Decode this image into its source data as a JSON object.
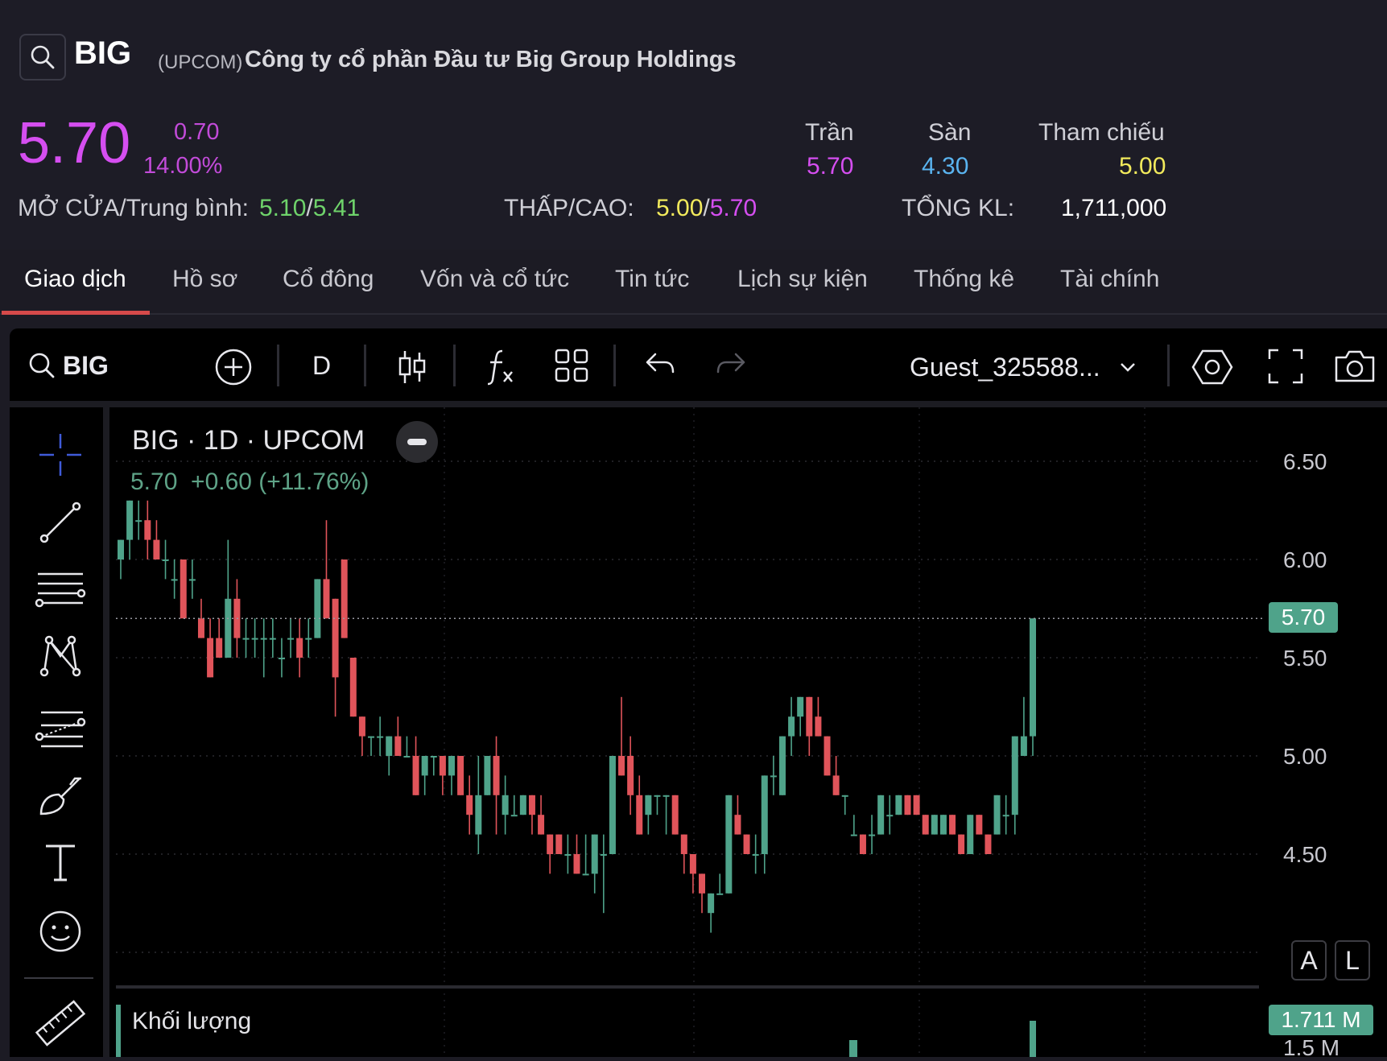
{
  "header": {
    "ticker": "BIG",
    "exchange": "(UPCOM)",
    "company_name": "Công ty cổ phần Đầu tư Big Group Holdings",
    "price": "5.70",
    "change": "0.70",
    "change_pct": "14.00%",
    "ceiling_label": "Trần",
    "ceiling_value": "5.70",
    "floor_label": "Sàn",
    "floor_value": "4.30",
    "ref_label": "Tham chiếu",
    "ref_value": "5.00",
    "open_avg_label": "MỞ CỬA/Trung bình:",
    "open_value": "5.10",
    "avg_value": "5.41",
    "low_high_label": "THẤP/CAO:",
    "low_value": "5.00",
    "high_value": "5.70",
    "volume_label": "TỔNG KL:",
    "volume_value": "1,711,000",
    "slash": "/"
  },
  "tabs": [
    "Giao dịch",
    "Hồ sơ",
    "Cổ đông",
    "Vốn và cổ tức",
    "Tin tức",
    "Lịch sự kiện",
    "Thống kê",
    "Tài chính"
  ],
  "toolbar": {
    "symbol": "BIG",
    "interval": "D",
    "user": "Guest_325588..."
  },
  "chart_legend": {
    "title": "BIG · 1D · UPCOM",
    "values": "5.70  +0.60 (+11.76%)"
  },
  "volume_pane": {
    "label": "Khối lượng",
    "last_label": "1.711 M",
    "axis_label": "1.5 M"
  },
  "axis_buttons": {
    "auto": "A",
    "log": "L"
  },
  "colors": {
    "up": "#4fa38a",
    "down": "#e0545a",
    "accent": "#d54ef0",
    "floor": "#5ab4f0",
    "ref": "#f2ea5c",
    "green": "#6fd36b"
  },
  "chart_data": {
    "type": "candlestick",
    "title": "BIG · 1D · UPCOM",
    "y_ticks": [
      "6.50",
      "6.00",
      "5.50",
      "5.00",
      "4.50"
    ],
    "ylim": [
      4.15,
      6.6
    ],
    "last_price_label": "5.70",
    "ohlc": [
      {
        "o": 6.0,
        "h": 6.1,
        "l": 5.9,
        "c": 6.1
      },
      {
        "o": 6.1,
        "h": 6.3,
        "l": 6.0,
        "c": 6.3
      },
      {
        "o": 6.2,
        "h": 6.3,
        "l": 6.1,
        "c": 6.2
      },
      {
        "o": 6.2,
        "h": 6.3,
        "l": 6.0,
        "c": 6.1
      },
      {
        "o": 6.1,
        "h": 6.2,
        "l": 6.0,
        "c": 6.0
      },
      {
        "o": 6.0,
        "h": 6.1,
        "l": 5.9,
        "c": 6.0
      },
      {
        "o": 5.9,
        "h": 6.0,
        "l": 5.8,
        "c": 5.9
      },
      {
        "o": 6.0,
        "h": 6.0,
        "l": 5.7,
        "c": 5.7
      },
      {
        "o": 5.9,
        "h": 6.0,
        "l": 5.8,
        "c": 5.9
      },
      {
        "o": 5.7,
        "h": 5.8,
        "l": 5.6,
        "c": 5.6
      },
      {
        "o": 5.6,
        "h": 5.7,
        "l": 5.4,
        "c": 5.4
      },
      {
        "o": 5.6,
        "h": 5.7,
        "l": 5.5,
        "c": 5.5
      },
      {
        "o": 5.5,
        "h": 6.1,
        "l": 5.5,
        "c": 5.8
      },
      {
        "o": 5.8,
        "h": 5.9,
        "l": 5.5,
        "c": 5.6
      },
      {
        "o": 5.6,
        "h": 5.7,
        "l": 5.5,
        "c": 5.6
      },
      {
        "o": 5.6,
        "h": 5.7,
        "l": 5.5,
        "c": 5.6
      },
      {
        "o": 5.6,
        "h": 5.7,
        "l": 5.4,
        "c": 5.6
      },
      {
        "o": 5.6,
        "h": 5.7,
        "l": 5.5,
        "c": 5.6
      },
      {
        "o": 5.5,
        "h": 5.6,
        "l": 5.4,
        "c": 5.5
      },
      {
        "o": 5.6,
        "h": 5.7,
        "l": 5.5,
        "c": 5.6
      },
      {
        "o": 5.6,
        "h": 5.7,
        "l": 5.4,
        "c": 5.5
      },
      {
        "o": 5.6,
        "h": 5.7,
        "l": 5.5,
        "c": 5.6
      },
      {
        "o": 5.6,
        "h": 5.9,
        "l": 5.6,
        "c": 5.9
      },
      {
        "o": 5.9,
        "h": 6.2,
        "l": 5.7,
        "c": 5.7
      },
      {
        "o": 5.8,
        "h": 5.8,
        "l": 5.2,
        "c": 5.4
      },
      {
        "o": 6.0,
        "h": 6.0,
        "l": 5.6,
        "c": 5.6
      },
      {
        "o": 5.5,
        "h": 5.5,
        "l": 5.2,
        "c": 5.2
      },
      {
        "o": 5.2,
        "h": 5.2,
        "l": 5.0,
        "c": 5.1
      },
      {
        "o": 5.1,
        "h": 5.1,
        "l": 5.0,
        "c": 5.1
      },
      {
        "o": 5.1,
        "h": 5.2,
        "l": 5.0,
        "c": 5.1
      },
      {
        "o": 5.0,
        "h": 5.1,
        "l": 4.9,
        "c": 5.1
      },
      {
        "o": 5.1,
        "h": 5.2,
        "l": 5.0,
        "c": 5.0
      },
      {
        "o": 5.0,
        "h": 5.1,
        "l": 5.0,
        "c": 5.0
      },
      {
        "o": 5.0,
        "h": 5.1,
        "l": 4.8,
        "c": 4.8
      },
      {
        "o": 4.9,
        "h": 5.0,
        "l": 4.8,
        "c": 5.0
      },
      {
        "o": 5.0,
        "h": 5.0,
        "l": 4.9,
        "c": 5.0
      },
      {
        "o": 5.0,
        "h": 5.0,
        "l": 4.8,
        "c": 4.9
      },
      {
        "o": 4.9,
        "h": 5.0,
        "l": 4.8,
        "c": 5.0
      },
      {
        "o": 5.0,
        "h": 5.0,
        "l": 4.8,
        "c": 4.8
      },
      {
        "o": 4.8,
        "h": 4.9,
        "l": 4.6,
        "c": 4.7
      },
      {
        "o": 4.6,
        "h": 5.0,
        "l": 4.5,
        "c": 4.8
      },
      {
        "o": 4.8,
        "h": 5.0,
        "l": 4.8,
        "c": 5.0
      },
      {
        "o": 5.0,
        "h": 5.1,
        "l": 4.6,
        "c": 4.8
      },
      {
        "o": 4.7,
        "h": 4.9,
        "l": 4.6,
        "c": 4.8
      },
      {
        "o": 4.7,
        "h": 4.8,
        "l": 4.7,
        "c": 4.7
      },
      {
        "o": 4.7,
        "h": 4.8,
        "l": 4.7,
        "c": 4.8
      },
      {
        "o": 4.8,
        "h": 4.8,
        "l": 4.6,
        "c": 4.7
      },
      {
        "o": 4.7,
        "h": 4.8,
        "l": 4.6,
        "c": 4.6
      },
      {
        "o": 4.6,
        "h": 4.6,
        "l": 4.4,
        "c": 4.5
      },
      {
        "o": 4.6,
        "h": 4.6,
        "l": 4.5,
        "c": 4.5
      },
      {
        "o": 4.5,
        "h": 4.6,
        "l": 4.4,
        "c": 4.5
      },
      {
        "o": 4.5,
        "h": 4.6,
        "l": 4.4,
        "c": 4.4
      },
      {
        "o": 4.4,
        "h": 4.6,
        "l": 4.4,
        "c": 4.4
      },
      {
        "o": 4.4,
        "h": 4.6,
        "l": 4.3,
        "c": 4.6
      },
      {
        "o": 4.5,
        "h": 4.6,
        "l": 4.2,
        "c": 4.5
      },
      {
        "o": 4.5,
        "h": 5.0,
        "l": 4.5,
        "c": 5.0
      },
      {
        "o": 5.0,
        "h": 5.3,
        "l": 4.9,
        "c": 4.9
      },
      {
        "o": 5.0,
        "h": 5.1,
        "l": 4.7,
        "c": 4.8
      },
      {
        "o": 4.8,
        "h": 4.9,
        "l": 4.6,
        "c": 4.6
      },
      {
        "o": 4.7,
        "h": 4.8,
        "l": 4.6,
        "c": 4.8
      },
      {
        "o": 4.8,
        "h": 4.8,
        "l": 4.7,
        "c": 4.8
      },
      {
        "o": 4.8,
        "h": 4.8,
        "l": 4.6,
        "c": 4.8
      },
      {
        "o": 4.8,
        "h": 4.8,
        "l": 4.6,
        "c": 4.6
      },
      {
        "o": 4.6,
        "h": 4.6,
        "l": 4.4,
        "c": 4.5
      },
      {
        "o": 4.5,
        "h": 4.5,
        "l": 4.3,
        "c": 4.4
      },
      {
        "o": 4.4,
        "h": 4.4,
        "l": 4.2,
        "c": 4.3
      },
      {
        "o": 4.2,
        "h": 4.3,
        "l": 4.1,
        "c": 4.3
      },
      {
        "o": 4.3,
        "h": 4.4,
        "l": 4.3,
        "c": 4.3
      },
      {
        "o": 4.3,
        "h": 4.8,
        "l": 4.3,
        "c": 4.8
      },
      {
        "o": 4.7,
        "h": 4.8,
        "l": 4.6,
        "c": 4.6
      },
      {
        "o": 4.6,
        "h": 4.6,
        "l": 4.5,
        "c": 4.5
      },
      {
        "o": 4.5,
        "h": 4.6,
        "l": 4.4,
        "c": 4.5
      },
      {
        "o": 4.5,
        "h": 4.9,
        "l": 4.4,
        "c": 4.9
      },
      {
        "o": 4.9,
        "h": 5.0,
        "l": 4.8,
        "c": 4.9
      },
      {
        "o": 4.8,
        "h": 5.1,
        "l": 4.8,
        "c": 5.1
      },
      {
        "o": 5.1,
        "h": 5.3,
        "l": 5.0,
        "c": 5.2
      },
      {
        "o": 5.2,
        "h": 5.3,
        "l": 5.1,
        "c": 5.3
      },
      {
        "o": 5.3,
        "h": 5.3,
        "l": 5.0,
        "c": 5.1
      },
      {
        "o": 5.2,
        "h": 5.3,
        "l": 5.1,
        "c": 5.1
      },
      {
        "o": 5.1,
        "h": 5.1,
        "l": 4.9,
        "c": 4.9
      },
      {
        "o": 4.9,
        "h": 5.0,
        "l": 4.8,
        "c": 4.8
      },
      {
        "o": 4.8,
        "h": 4.8,
        "l": 4.7,
        "c": 4.8
      },
      {
        "o": 4.6,
        "h": 4.7,
        "l": 4.6,
        "c": 4.6
      },
      {
        "o": 4.6,
        "h": 4.6,
        "l": 4.5,
        "c": 4.5
      },
      {
        "o": 4.6,
        "h": 4.7,
        "l": 4.5,
        "c": 4.6
      },
      {
        "o": 4.6,
        "h": 4.8,
        "l": 4.6,
        "c": 4.8
      },
      {
        "o": 4.7,
        "h": 4.8,
        "l": 4.6,
        "c": 4.7
      },
      {
        "o": 4.7,
        "h": 4.8,
        "l": 4.7,
        "c": 4.8
      },
      {
        "o": 4.8,
        "h": 4.8,
        "l": 4.7,
        "c": 4.7
      },
      {
        "o": 4.8,
        "h": 4.8,
        "l": 4.7,
        "c": 4.7
      },
      {
        "o": 4.7,
        "h": 4.7,
        "l": 4.6,
        "c": 4.6
      },
      {
        "o": 4.6,
        "h": 4.7,
        "l": 4.6,
        "c": 4.7
      },
      {
        "o": 4.6,
        "h": 4.7,
        "l": 4.6,
        "c": 4.7
      },
      {
        "o": 4.7,
        "h": 4.7,
        "l": 4.6,
        "c": 4.6
      },
      {
        "o": 4.6,
        "h": 4.6,
        "l": 4.5,
        "c": 4.5
      },
      {
        "o": 4.5,
        "h": 4.7,
        "l": 4.5,
        "c": 4.7
      },
      {
        "o": 4.7,
        "h": 4.7,
        "l": 4.6,
        "c": 4.6
      },
      {
        "o": 4.6,
        "h": 4.6,
        "l": 4.5,
        "c": 4.5
      },
      {
        "o": 4.6,
        "h": 4.8,
        "l": 4.6,
        "c": 4.8
      },
      {
        "o": 4.7,
        "h": 4.8,
        "l": 4.6,
        "c": 4.7
      },
      {
        "o": 4.7,
        "h": 5.1,
        "l": 4.6,
        "c": 5.1
      },
      {
        "o": 5.0,
        "h": 5.3,
        "l": 5.0,
        "c": 5.1
      },
      {
        "o": 5.1,
        "h": 5.7,
        "l": 5.0,
        "c": 5.7
      }
    ],
    "volume_last": "1.711 M"
  }
}
